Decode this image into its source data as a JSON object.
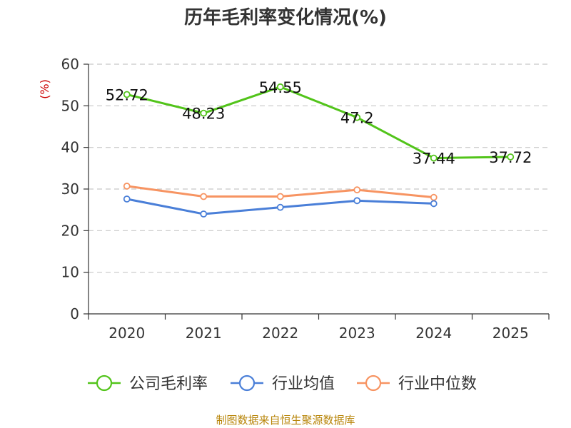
{
  "title": "历年毛利率变化情况(%)",
  "source": "制图数据来自恒生聚源数据库",
  "chart_data": {
    "type": "line",
    "title": "历年毛利率变化情况(%)",
    "ylabel": "(%)",
    "xlabel": "",
    "ylim": [
      0,
      60
    ],
    "yticks": [
      0,
      10,
      20,
      30,
      40,
      50,
      60
    ],
    "categories": [
      "2020",
      "2021",
      "2022",
      "2023",
      "2024",
      "2025"
    ],
    "grid": true,
    "legend_position": "bottom",
    "series": [
      {
        "name": "公司毛利率",
        "color": "#52c41a",
        "values": [
          52.72,
          48.23,
          54.55,
          47.2,
          37.44,
          37.72
        ],
        "labels": [
          "52.72",
          "48.23",
          "54.55",
          "47.2",
          "37.44",
          "37.72"
        ]
      },
      {
        "name": "行业均值",
        "color": "#4a7fd8",
        "values": [
          27.6,
          24.0,
          25.6,
          27.2,
          26.5,
          null
        ]
      },
      {
        "name": "行业中位数",
        "color": "#f79462",
        "values": [
          30.7,
          28.2,
          28.2,
          29.8,
          28.0,
          null
        ]
      }
    ]
  }
}
